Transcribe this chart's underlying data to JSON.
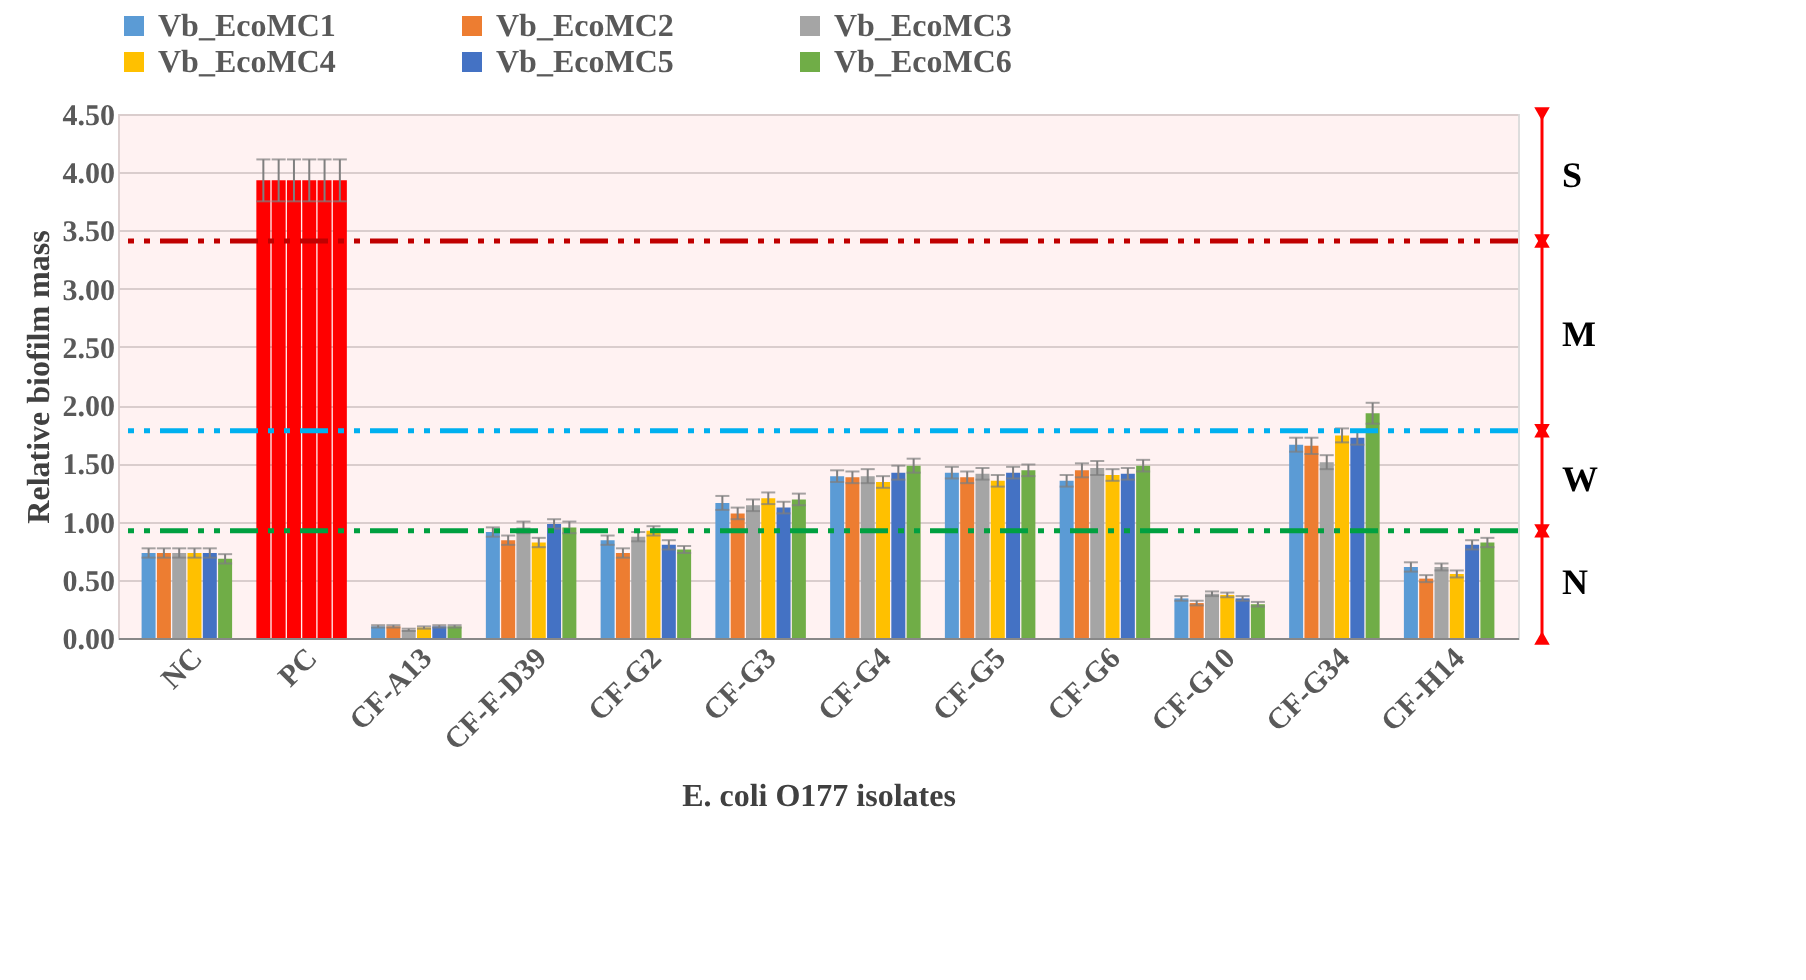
{
  "chart_data": {
    "type": "bar",
    "xlabel": "E. coli O177 isolates",
    "ylabel": "Relative biofilm mass",
    "categories": [
      "NC",
      "PC",
      "CF-A13",
      "CF-F-D39",
      "CF-G2",
      "CF-G3",
      "CF-G4",
      "CF-G5",
      "CF-G6",
      "CF-G10",
      "CF-G34",
      "CF-H14"
    ],
    "series": [
      {
        "name": "Vb_EcoMC1",
        "color": "#5b9bd5",
        "colors": [
          "#5b9bd5",
          "#ff0000",
          "#5b9bd5",
          "#5b9bd5",
          "#5b9bd5",
          "#5b9bd5",
          "#5b9bd5",
          "#5b9bd5",
          "#5b9bd5",
          "#5b9bd5",
          "#5b9bd5",
          "#5b9bd5"
        ],
        "values": [
          0.73,
          3.93,
          0.1,
          0.91,
          0.84,
          1.16,
          1.39,
          1.42,
          1.35,
          0.34,
          1.66,
          0.61
        ],
        "errors": [
          0.04,
          0.18,
          0.01,
          0.04,
          0.04,
          0.06,
          0.05,
          0.05,
          0.05,
          0.02,
          0.06,
          0.04
        ]
      },
      {
        "name": "Vb_EcoMC2",
        "color": "#ed7d31",
        "colors": [
          "#ed7d31",
          "#ff0000",
          "#ed7d31",
          "#ed7d31",
          "#ed7d31",
          "#ed7d31",
          "#ed7d31",
          "#ed7d31",
          "#ed7d31",
          "#ed7d31",
          "#ed7d31",
          "#ed7d31"
        ],
        "values": [
          0.73,
          3.93,
          0.1,
          0.84,
          0.73,
          1.07,
          1.38,
          1.38,
          1.44,
          0.3,
          1.65,
          0.51
        ],
        "errors": [
          0.04,
          0.18,
          0.01,
          0.04,
          0.04,
          0.05,
          0.05,
          0.05,
          0.06,
          0.02,
          0.07,
          0.03
        ]
      },
      {
        "name": "Vb_EcoMC3",
        "color": "#a5a5a5",
        "colors": [
          "#a5a5a5",
          "#ff0000",
          "#a5a5a5",
          "#a5a5a5",
          "#a5a5a5",
          "#a5a5a5",
          "#a5a5a5",
          "#a5a5a5",
          "#a5a5a5",
          "#a5a5a5",
          "#a5a5a5",
          "#a5a5a5"
        ],
        "values": [
          0.73,
          3.93,
          0.07,
          0.95,
          0.87,
          1.14,
          1.39,
          1.41,
          1.46,
          0.38,
          1.51,
          0.61
        ],
        "errors": [
          0.04,
          0.18,
          0.01,
          0.05,
          0.04,
          0.05,
          0.06,
          0.05,
          0.06,
          0.02,
          0.06,
          0.03
        ]
      },
      {
        "name": "Vb_EcoMC4",
        "color": "#ffc000",
        "colors": [
          "#ffc000",
          "#ff0000",
          "#ffc000",
          "#ffc000",
          "#ffc000",
          "#ffc000",
          "#ffc000",
          "#ffc000",
          "#ffc000",
          "#ffc000",
          "#ffc000",
          "#ffc000"
        ],
        "values": [
          0.73,
          3.93,
          0.09,
          0.82,
          0.92,
          1.2,
          1.34,
          1.35,
          1.4,
          0.37,
          1.74,
          0.55
        ],
        "errors": [
          0.04,
          0.18,
          0.01,
          0.04,
          0.04,
          0.05,
          0.05,
          0.05,
          0.05,
          0.02,
          0.06,
          0.03
        ]
      },
      {
        "name": "Vb_EcoMC5",
        "color": "#4472c4",
        "colors": [
          "#4472c4",
          "#ff0000",
          "#4472c4",
          "#4472c4",
          "#4472c4",
          "#4472c4",
          "#4472c4",
          "#4472c4",
          "#4472c4",
          "#4472c4",
          "#4472c4",
          "#4472c4"
        ],
        "values": [
          0.73,
          3.93,
          0.1,
          0.98,
          0.8,
          1.12,
          1.42,
          1.42,
          1.41,
          0.34,
          1.72,
          0.8
        ],
        "errors": [
          0.04,
          0.18,
          0.01,
          0.04,
          0.04,
          0.05,
          0.06,
          0.05,
          0.05,
          0.02,
          0.06,
          0.04
        ]
      },
      {
        "name": "Vb_EcoMC6",
        "color": "#70ad47",
        "colors": [
          "#70ad47",
          "#ff0000",
          "#70ad47",
          "#70ad47",
          "#70ad47",
          "#70ad47",
          "#70ad47",
          "#70ad47",
          "#70ad47",
          "#70ad47",
          "#70ad47",
          "#70ad47"
        ],
        "values": [
          0.68,
          3.93,
          0.1,
          0.95,
          0.76,
          1.19,
          1.48,
          1.44,
          1.48,
          0.29,
          1.93,
          0.82
        ],
        "errors": [
          0.04,
          0.18,
          0.01,
          0.05,
          0.03,
          0.05,
          0.06,
          0.05,
          0.05,
          0.02,
          0.09,
          0.04
        ]
      }
    ],
    "ylim": [
      0,
      4.5
    ],
    "yticks": [
      {
        "value": 0,
        "label": "0.00"
      },
      {
        "value": 0.5,
        "label": "0.50"
      },
      {
        "value": 1,
        "label": "1.00"
      },
      {
        "value": 1.5,
        "label": "1.50"
      },
      {
        "value": 2,
        "label": "2.00"
      },
      {
        "value": 2.5,
        "label": "2.50"
      },
      {
        "value": 3,
        "label": "3.00"
      },
      {
        "value": 3.5,
        "label": "3.50"
      },
      {
        "value": 4,
        "label": "4.00"
      },
      {
        "value": 4.5,
        "label": "4.50"
      }
    ],
    "ref_lines": [
      {
        "axis": "y",
        "value": 3.41,
        "color": "#c00000",
        "line_style": "dashed"
      },
      {
        "axis": "y",
        "value": 1.78,
        "color": "#00b0f0",
        "line_style": "dashed"
      },
      {
        "axis": "y",
        "value": 0.92,
        "color": "#00a040",
        "line_style": "dashed"
      }
    ],
    "bands": [
      {
        "axis": "y",
        "from": 3.41,
        "to": 4.5,
        "label": "S",
        "color": "#ff0000"
      },
      {
        "axis": "y",
        "from": 1.78,
        "to": 3.41,
        "label": "M",
        "color": "#ff0000"
      },
      {
        "axis": "y",
        "from": 0.92,
        "to": 1.78,
        "label": "W",
        "color": "#ff0000"
      },
      {
        "axis": "y",
        "from": 0,
        "to": 0.92,
        "label": "N",
        "color": "#ff0000"
      }
    ],
    "grid": "y",
    "legend": "top"
  }
}
